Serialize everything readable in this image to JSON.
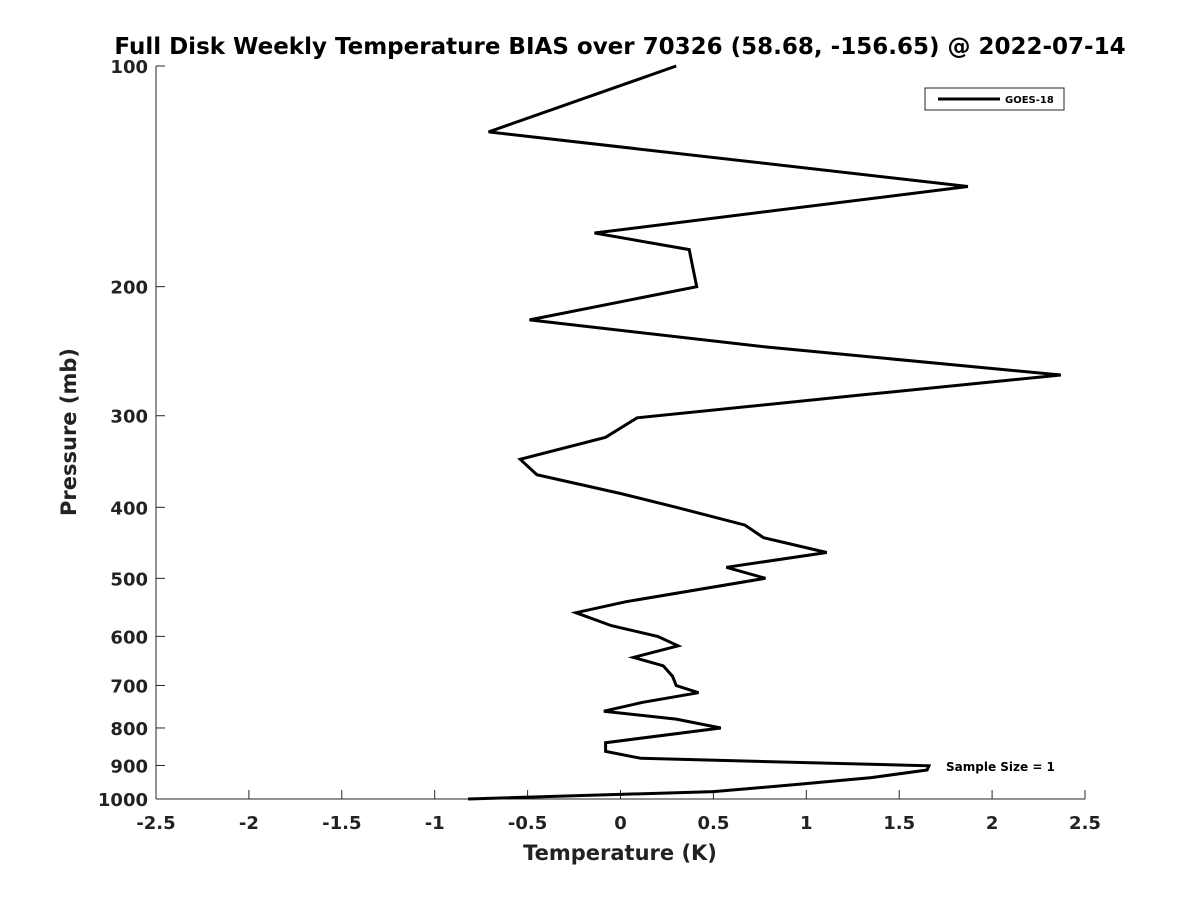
{
  "chart_data": {
    "type": "line",
    "title": "Full Disk Weekly Temperature BIAS over 70326 (58.68, -156.65) @ 2022-07-14",
    "xlabel": "Temperature (K)",
    "ylabel": "Pressure (mb)",
    "xlim": [
      -2.5,
      2.5
    ],
    "ylim": [
      1000,
      100
    ],
    "y_scale": "log",
    "y_reversed": true,
    "grid": false,
    "x_ticks": [
      -2.5,
      -2,
      -1.5,
      -1,
      -0.5,
      0,
      0.5,
      1,
      1.5,
      2,
      2.5
    ],
    "x_tick_labels": [
      "-2.5",
      "-2",
      "-1.5",
      "-1",
      "-0.5",
      "0",
      "0.5",
      "1",
      "1.5",
      "2",
      "2.5"
    ],
    "y_ticks": [
      100,
      200,
      300,
      400,
      500,
      600,
      700,
      800,
      900,
      1000
    ],
    "y_tick_labels": [
      "100",
      "200",
      "300",
      "400",
      "500",
      "600",
      "700",
      "800",
      "900",
      "1000"
    ],
    "legend": {
      "position": "top-right",
      "entries": [
        "GOES-18"
      ]
    },
    "annotation": "Sample Size = 1",
    "series": [
      {
        "name": "GOES-18",
        "color": "#000000",
        "points": [
          {
            "t": 0.3,
            "p": 100
          },
          {
            "t": -0.71,
            "p": 123
          },
          {
            "t": 1.87,
            "p": 146
          },
          {
            "t": -0.14,
            "p": 169
          },
          {
            "t": 0.37,
            "p": 178
          },
          {
            "t": 0.41,
            "p": 200
          },
          {
            "t": -0.49,
            "p": 222
          },
          {
            "t": 0.8,
            "p": 242
          },
          {
            "t": 2.37,
            "p": 264
          },
          {
            "t": 1.3,
            "p": 281
          },
          {
            "t": 0.09,
            "p": 302
          },
          {
            "t": -0.08,
            "p": 321
          },
          {
            "t": -0.54,
            "p": 344
          },
          {
            "t": -0.45,
            "p": 361
          },
          {
            "t": 0.0,
            "p": 383
          },
          {
            "t": 0.3,
            "p": 400
          },
          {
            "t": 0.67,
            "p": 423
          },
          {
            "t": 0.77,
            "p": 440
          },
          {
            "t": 1.11,
            "p": 461
          },
          {
            "t": 0.57,
            "p": 483
          },
          {
            "t": 0.78,
            "p": 500
          },
          {
            "t": 0.03,
            "p": 538
          },
          {
            "t": -0.24,
            "p": 557
          },
          {
            "t": -0.05,
            "p": 580
          },
          {
            "t": 0.2,
            "p": 600
          },
          {
            "t": 0.31,
            "p": 618
          },
          {
            "t": 0.07,
            "p": 641
          },
          {
            "t": 0.23,
            "p": 658
          },
          {
            "t": 0.28,
            "p": 680
          },
          {
            "t": 0.3,
            "p": 700
          },
          {
            "t": 0.42,
            "p": 716
          },
          {
            "t": 0.12,
            "p": 738
          },
          {
            "t": -0.09,
            "p": 759
          },
          {
            "t": 0.3,
            "p": 778
          },
          {
            "t": 0.54,
            "p": 800
          },
          {
            "t": -0.08,
            "p": 838
          },
          {
            "t": -0.08,
            "p": 861
          },
          {
            "t": 0.11,
            "p": 880
          },
          {
            "t": 1.66,
            "p": 901
          },
          {
            "t": 1.65,
            "p": 913
          },
          {
            "t": 1.35,
            "p": 935
          },
          {
            "t": 0.96,
            "p": 955
          },
          {
            "t": 0.5,
            "p": 977
          },
          {
            "t": -0.82,
            "p": 1000
          }
        ]
      }
    ]
  }
}
